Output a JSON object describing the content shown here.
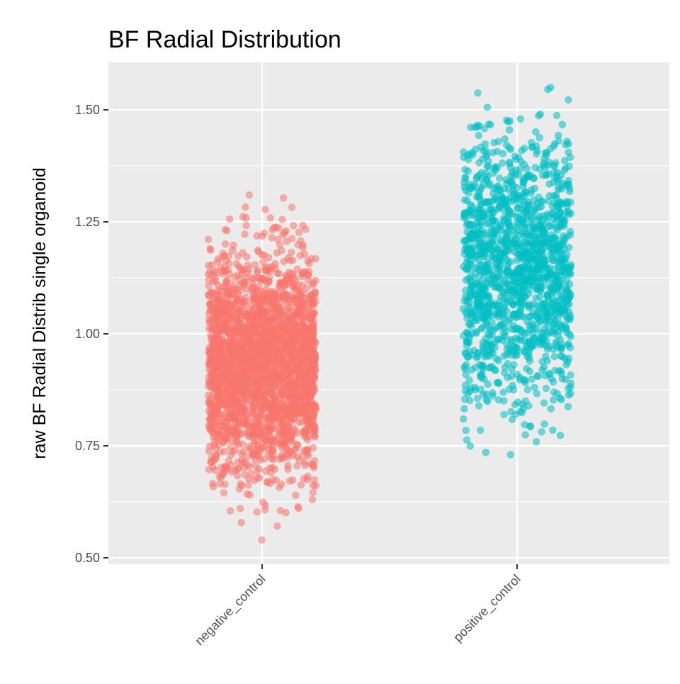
{
  "chart_data": {
    "type": "scatter",
    "subtype": "jitter strip plot",
    "title": "BF Radial Distribution",
    "xlabel": "",
    "ylabel": "raw BF Radial Distrib single organoid",
    "ylim": [
      0.5,
      1.6
    ],
    "y_ticks": [
      "0.50",
      "0.75",
      "1.00",
      "1.25",
      "1.50"
    ],
    "y_tick_values": [
      0.5,
      0.75,
      1.0,
      1.25,
      1.5
    ],
    "grid": true,
    "legend": "none",
    "categories": [
      "negative_control",
      "positive_control"
    ],
    "series": [
      {
        "category": "negative_control",
        "color": "#f8766d",
        "point_count": 2500,
        "y_range": [
          0.54,
          1.31
        ],
        "y_center": 0.93,
        "y_sd": 0.12
      },
      {
        "category": "positive_control",
        "color": "#00bfc4",
        "point_count": 1500,
        "y_range": [
          0.73,
          1.55
        ],
        "y_center": 1.15,
        "y_sd": 0.15
      }
    ]
  }
}
